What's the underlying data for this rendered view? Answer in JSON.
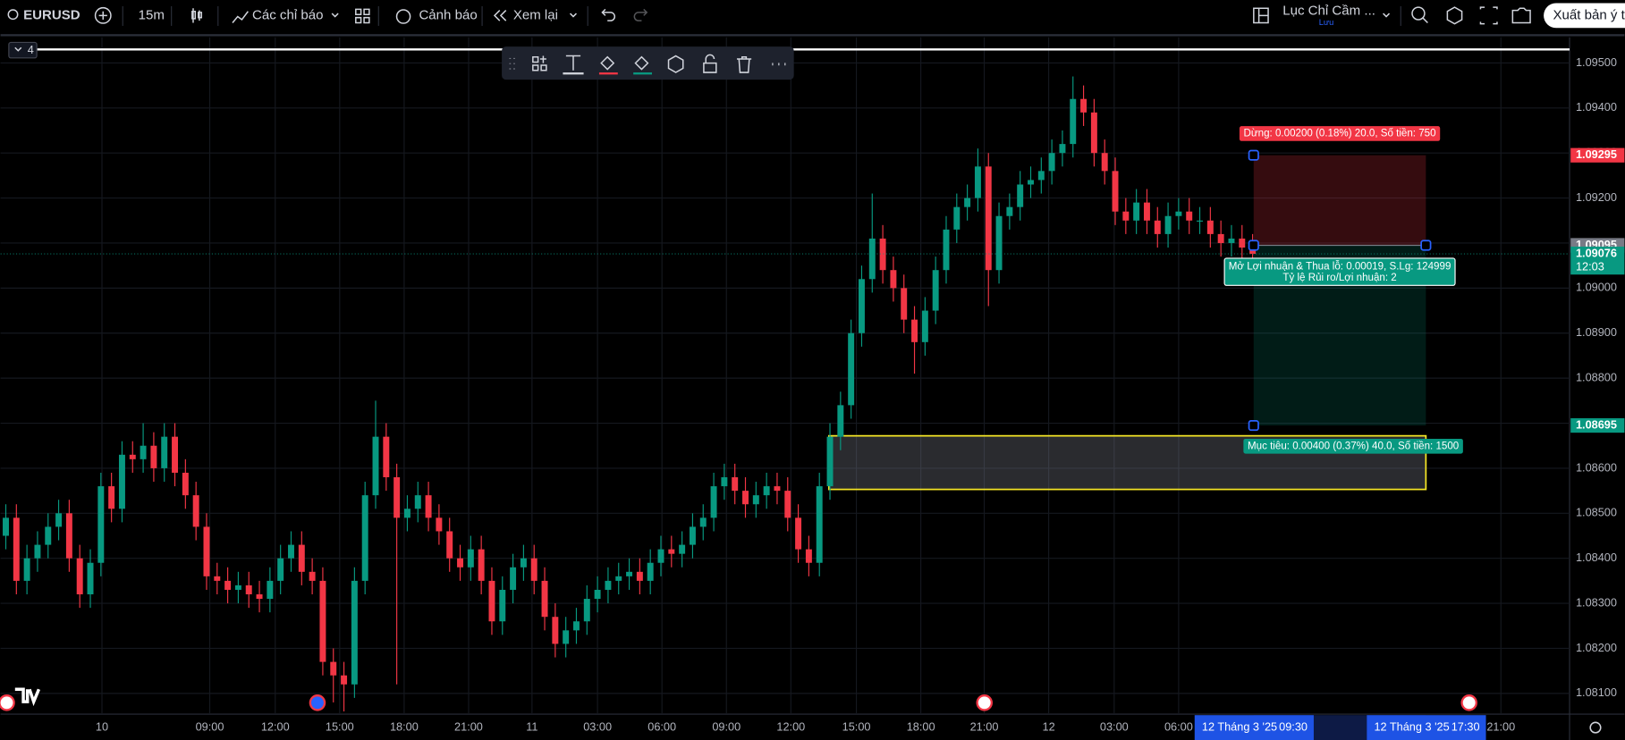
{
  "toolbar": {
    "symbol": "EURUSD",
    "interval": "15m",
    "indicators": "Các chỉ báo",
    "alerts": "Cảnh báo",
    "replay": "Xem lại",
    "layout_name": "Lục Chỉ Cầm ...",
    "save_state": "Lưu",
    "publish": "Xuất bản ý tư",
    "pane_count": "4"
  },
  "chart_data": {
    "type": "candlestick",
    "up_color": "#089981",
    "down_color": "#f23645",
    "grid": true,
    "xlim": [
      -0.5,
      148
    ],
    "ylim": [
      1.08054,
      1.09557
    ],
    "yticks": [
      {
        "value": 1.095,
        "label": "1.09500"
      },
      {
        "value": 1.094,
        "label": "1.09400"
      },
      {
        "value": 1.093,
        "label": "1.09300"
      },
      {
        "value": 1.092,
        "label": "1.09200"
      },
      {
        "value": 1.091,
        "label": "1.09100"
      },
      {
        "value": 1.09,
        "label": "1.09000"
      },
      {
        "value": 1.089,
        "label": "1.08900"
      },
      {
        "value": 1.088,
        "label": "1.08800"
      },
      {
        "value": 1.087,
        "label": "1.08700"
      },
      {
        "value": 1.086,
        "label": "1.08600"
      },
      {
        "value": 1.085,
        "label": "1.08500"
      },
      {
        "value": 1.084,
        "label": "1.08400"
      },
      {
        "value": 1.083,
        "label": "1.08300"
      },
      {
        "value": 1.082,
        "label": "1.08200"
      },
      {
        "value": 1.081,
        "label": "1.08100"
      }
    ],
    "xticks": [
      {
        "value": 9.1,
        "label": "10"
      },
      {
        "value": 19.3,
        "label": "09:00"
      },
      {
        "value": 25.5,
        "label": "12:00"
      },
      {
        "value": 31.6,
        "label": "15:00"
      },
      {
        "value": 37.7,
        "label": "18:00"
      },
      {
        "value": 43.8,
        "label": "21:00"
      },
      {
        "value": 49.8,
        "label": "11"
      },
      {
        "value": 56,
        "label": "03:00"
      },
      {
        "value": 62.1,
        "label": "06:00"
      },
      {
        "value": 68.2,
        "label": "09:00"
      },
      {
        "value": 74.3,
        "label": "12:00"
      },
      {
        "value": 80.5,
        "label": "15:00"
      },
      {
        "value": 86.6,
        "label": "18:00"
      },
      {
        "value": 92.6,
        "label": "21:00"
      },
      {
        "value": 98.7,
        "label": "12"
      },
      {
        "value": 104.9,
        "label": "03:00"
      },
      {
        "value": 111,
        "label": "06:00"
      },
      {
        "value": 141.5,
        "label": "21:00"
      }
    ],
    "open": [
      1.0845,
      1.0849,
      1.0835,
      1.084,
      1.0843,
      1.0847,
      1.085,
      1.084,
      1.0832,
      1.0839,
      1.0856,
      1.0851,
      1.0863,
      1.0862,
      1.0865,
      1.086,
      1.0867,
      1.0859,
      1.0854,
      1.0847,
      1.0836,
      1.0835,
      1.0833,
      1.0834,
      1.0832,
      1.0831,
      1.0835,
      1.084,
      1.0843,
      1.0837,
      1.0835,
      1.0817,
      1.0814,
      1.0812,
      1.0835,
      1.0854,
      1.0867,
      1.0858,
      1.0849,
      1.0851,
      1.0854,
      1.0849,
      1.0846,
      1.084,
      1.0838,
      1.0842,
      1.0835,
      1.0826,
      1.0833,
      1.0838,
      1.084,
      1.0835,
      1.0827,
      1.0821,
      1.0824,
      1.0826,
      1.0831,
      1.0833,
      1.0835,
      1.0836,
      1.0837,
      1.0835,
      1.0839,
      1.0842,
      1.0841,
      1.0843,
      1.0847,
      1.0849,
      1.0856,
      1.0858,
      1.0855,
      1.0852,
      1.0854,
      1.0856,
      1.0855,
      1.0849,
      1.0842,
      1.0839,
      1.0856,
      1.0867,
      1.0874,
      1.089,
      1.0902,
      1.0911,
      1.0904,
      1.09,
      1.0893,
      1.0888,
      1.0895,
      1.0904,
      1.0913,
      1.0918,
      1.092,
      1.0927,
      1.0904,
      1.0916,
      1.0918,
      1.0923,
      1.0924,
      1.0926,
      1.093,
      1.0932,
      1.0942,
      1.0939,
      1.093,
      1.0926,
      1.0917,
      1.0915,
      1.0919,
      1.0915,
      1.0912,
      1.0916,
      1.0917,
      1.0915,
      1.0915,
      1.0912,
      1.091,
      1.0911,
      1.0909
    ],
    "high": [
      1.0852,
      1.0852,
      1.0843,
      1.0846,
      1.085,
      1.0853,
      1.0853,
      1.0843,
      1.0842,
      1.0859,
      1.0859,
      1.0866,
      1.0866,
      1.087,
      1.0868,
      1.087,
      1.087,
      1.0862,
      1.0857,
      1.085,
      1.0839,
      1.0838,
      1.0837,
      1.0837,
      1.0835,
      1.0838,
      1.0843,
      1.0846,
      1.0846,
      1.084,
      1.0838,
      1.082,
      1.0817,
      1.0838,
      1.0857,
      1.0875,
      1.087,
      1.0861,
      1.0854,
      1.0857,
      1.0857,
      1.0852,
      1.0849,
      1.0843,
      1.0845,
      1.0845,
      1.0838,
      1.0836,
      1.0841,
      1.0843,
      1.0843,
      1.0838,
      1.083,
      1.0827,
      1.0829,
      1.0834,
      1.0836,
      1.0838,
      1.0839,
      1.084,
      1.084,
      1.0842,
      1.0845,
      1.0845,
      1.0846,
      1.085,
      1.0852,
      1.0859,
      1.0861,
      1.0861,
      1.0858,
      1.0857,
      1.0859,
      1.0859,
      1.0858,
      1.0852,
      1.0845,
      1.0859,
      1.087,
      1.0877,
      1.0893,
      1.0905,
      1.0921,
      1.0914,
      1.0907,
      1.0903,
      1.0896,
      1.0898,
      1.0907,
      1.0916,
      1.0921,
      1.0923,
      1.0931,
      1.093,
      1.0919,
      1.0921,
      1.0926,
      1.0927,
      1.0929,
      1.0933,
      1.0935,
      1.0947,
      1.0945,
      1.0942,
      1.0933,
      1.0929,
      1.092,
      1.0922,
      1.0922,
      1.0918,
      1.0919,
      1.092,
      1.092,
      1.0918,
      1.0918,
      1.0915,
      1.0914,
      1.0914,
      1.0912
    ],
    "low": [
      1.0842,
      1.0832,
      1.0832,
      1.0837,
      1.084,
      1.0844,
      1.0837,
      1.0829,
      1.0829,
      1.0836,
      1.0848,
      1.0848,
      1.0859,
      1.0859,
      1.0857,
      1.0857,
      1.0856,
      1.0851,
      1.0844,
      1.0833,
      1.0832,
      1.083,
      1.083,
      1.0829,
      1.0828,
      1.0828,
      1.0832,
      1.0837,
      1.0834,
      1.0832,
      1.0814,
      1.0808,
      1.0806,
      1.0809,
      1.0832,
      1.0851,
      1.0855,
      1.0812,
      1.0846,
      1.0848,
      1.0846,
      1.0843,
      1.0837,
      1.0835,
      1.0835,
      1.0832,
      1.0823,
      1.0823,
      1.083,
      1.0835,
      1.0832,
      1.0824,
      1.0818,
      1.0818,
      1.0821,
      1.0823,
      1.0828,
      1.083,
      1.0832,
      1.0833,
      1.0832,
      1.0832,
      1.0836,
      1.0838,
      1.0838,
      1.084,
      1.0844,
      1.0846,
      1.0853,
      1.0852,
      1.0849,
      1.0849,
      1.0851,
      1.0852,
      1.0846,
      1.0839,
      1.0836,
      1.0836,
      1.0853,
      1.0864,
      1.0871,
      1.0887,
      1.0899,
      1.0901,
      1.0897,
      1.089,
      1.0881,
      1.0885,
      1.0892,
      1.0901,
      1.091,
      1.0915,
      1.0917,
      1.0896,
      1.0901,
      1.0913,
      1.0915,
      1.092,
      1.0921,
      1.0923,
      1.0927,
      1.0929,
      1.0936,
      1.0927,
      1.0923,
      1.0914,
      1.0912,
      1.0912,
      1.0912,
      1.0909,
      1.0909,
      1.0913,
      1.0912,
      1.0912,
      1.0909,
      1.0907,
      1.0907,
      1.0906,
      1.0905
    ],
    "close": [
      1.0849,
      1.0835,
      1.084,
      1.0843,
      1.0847,
      1.085,
      1.084,
      1.0832,
      1.0839,
      1.0856,
      1.0851,
      1.0863,
      1.0862,
      1.0865,
      1.086,
      1.0867,
      1.0859,
      1.0854,
      1.0847,
      1.0836,
      1.0835,
      1.0833,
      1.0834,
      1.0832,
      1.0831,
      1.0835,
      1.084,
      1.0843,
      1.0837,
      1.0835,
      1.0817,
      1.0814,
      1.0812,
      1.0835,
      1.0854,
      1.0867,
      1.0858,
      1.0849,
      1.0851,
      1.0854,
      1.0849,
      1.0846,
      1.084,
      1.0838,
      1.0842,
      1.0835,
      1.0826,
      1.0833,
      1.0838,
      1.084,
      1.0835,
      1.0827,
      1.0821,
      1.0824,
      1.0826,
      1.0831,
      1.0833,
      1.0835,
      1.0836,
      1.0837,
      1.0835,
      1.0839,
      1.0842,
      1.0841,
      1.0843,
      1.0847,
      1.0849,
      1.0856,
      1.0858,
      1.0855,
      1.0852,
      1.0854,
      1.0856,
      1.0855,
      1.0849,
      1.0842,
      1.0839,
      1.0856,
      1.0867,
      1.0874,
      1.089,
      1.0902,
      1.0911,
      1.0904,
      1.09,
      1.0893,
      1.0888,
      1.0895,
      1.0904,
      1.0913,
      1.0918,
      1.092,
      1.0927,
      1.0904,
      1.0916,
      1.0918,
      1.0923,
      1.0924,
      1.0926,
      1.093,
      1.0932,
      1.0942,
      1.0939,
      1.093,
      1.0926,
      1.0917,
      1.0915,
      1.0919,
      1.0915,
      1.0912,
      1.0916,
      1.0917,
      1.0915,
      1.0915,
      1.0912,
      1.091,
      1.0911,
      1.0909,
      1.09076
    ],
    "countdown": "12:03",
    "horizontal_line": 1.0953,
    "rectangle": {
      "x": [
        77.9,
        134.4
      ],
      "y": [
        1.08553,
        1.08672
      ],
      "color": "#f5e625"
    },
    "position": {
      "x": [
        118.1,
        134.4
      ],
      "entry": 1.09095,
      "stop": 1.09295,
      "target": 1.08695,
      "stop_label": "Dừng: 0.00200 (0.18%) 20.0, Số tiền: 750",
      "pnl_label": "Mở Lợi nhuận & Thua lỗ: 0.00019, S.Lg: 124999",
      "ratio_label": "Tỷ lệ Rủi ro/Lợi nhuận: 2",
      "target_label": "Mục tiêu: 0.00400 (0.37%) 40.0, Số tiền: 1500"
    },
    "time_markers": [
      {
        "value": 118.1,
        "date": "12 Tháng 3 '25",
        "time": "09:30"
      },
      {
        "value": 134.4,
        "date": "12 Tháng 3 '25",
        "time": "17:30"
      }
    ]
  }
}
